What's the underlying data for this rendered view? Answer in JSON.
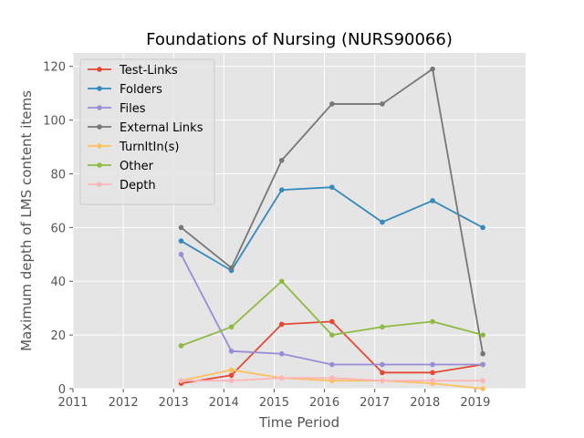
{
  "chart_data": {
    "type": "line",
    "title": "Foundations of Nursing (NURS90066)",
    "xlabel": "Time Period",
    "ylabel": "Maximum depth of LMS content items",
    "xlim": [
      2011,
      2020
    ],
    "ylim": [
      0,
      125
    ],
    "xticks": [
      "2011",
      "2012",
      "2013",
      "2014",
      "2015",
      "2016",
      "2017",
      "2018",
      "2019"
    ],
    "yticks": [
      "0",
      "20",
      "40",
      "60",
      "80",
      "100",
      "120"
    ],
    "grid": true,
    "legend_position": "upper-left",
    "x": [
      2013.15,
      2014.15,
      2015.15,
      2016.15,
      2017.15,
      2018.15,
      2019.15
    ],
    "series": [
      {
        "name": "Test-Links",
        "color": "#e24a33",
        "values": [
          2,
          5,
          24,
          25,
          6,
          6,
          9
        ]
      },
      {
        "name": "Folders",
        "color": "#348abd",
        "values": [
          55,
          44,
          74,
          75,
          62,
          70,
          60
        ]
      },
      {
        "name": "Files",
        "color": "#988ed5",
        "values": [
          50,
          14,
          13,
          9,
          9,
          9,
          9
        ]
      },
      {
        "name": "External Links",
        "color": "#777777",
        "values": [
          60,
          45,
          85,
          106,
          106,
          119,
          13
        ]
      },
      {
        "name": "TurnItIn(s)",
        "color": "#fbc15e",
        "values": [
          3,
          7,
          4,
          3,
          3,
          2,
          0
        ]
      },
      {
        "name": "Other",
        "color": "#8eba42",
        "values": [
          16,
          23,
          40,
          20,
          23,
          25,
          20
        ]
      },
      {
        "name": "Depth",
        "color": "#ffb5b8",
        "values": [
          3,
          3,
          4,
          4,
          3,
          3,
          3
        ]
      }
    ]
  }
}
